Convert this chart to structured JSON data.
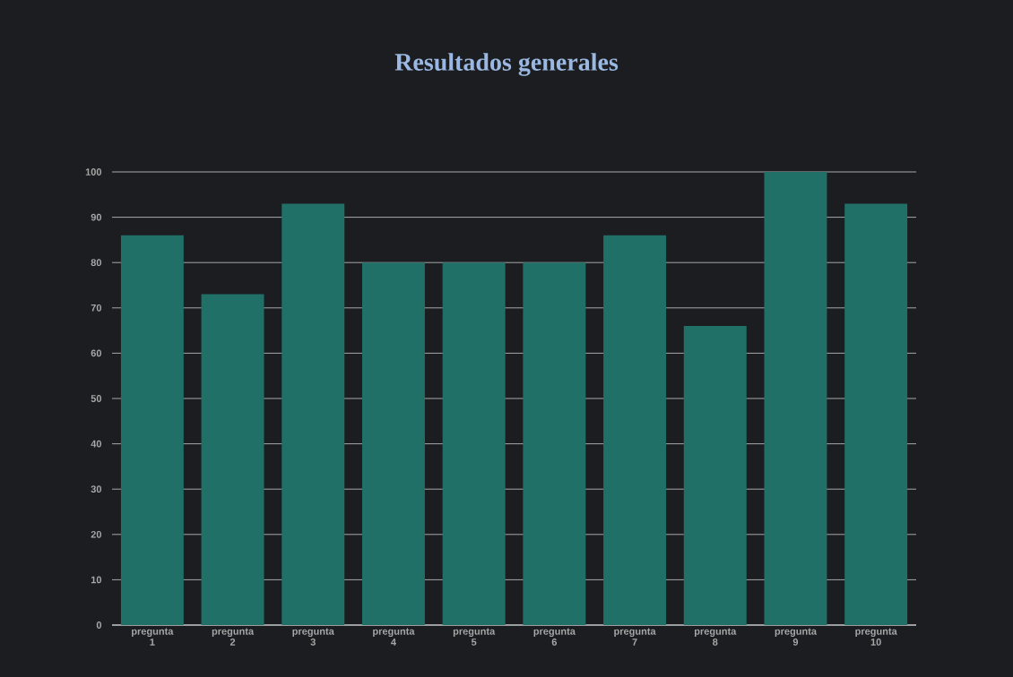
{
  "chart_data": {
    "type": "bar",
    "title": "Resultados generales",
    "categories": [
      "pregunta 1",
      "pregunta 2",
      "pregunta 3",
      "pregunta 4",
      "pregunta 5",
      "pregunta 6",
      "pregunta 7",
      "pregunta 8",
      "pregunta 9",
      "pregunta 10"
    ],
    "values": [
      86,
      73,
      93,
      80,
      80,
      80,
      86,
      66,
      100,
      93
    ],
    "color": "#207068",
    "ylim": [
      0,
      100
    ],
    "yticks": [
      0,
      10,
      20,
      30,
      40,
      50,
      60,
      70,
      80,
      90,
      100
    ],
    "grid": "y"
  }
}
